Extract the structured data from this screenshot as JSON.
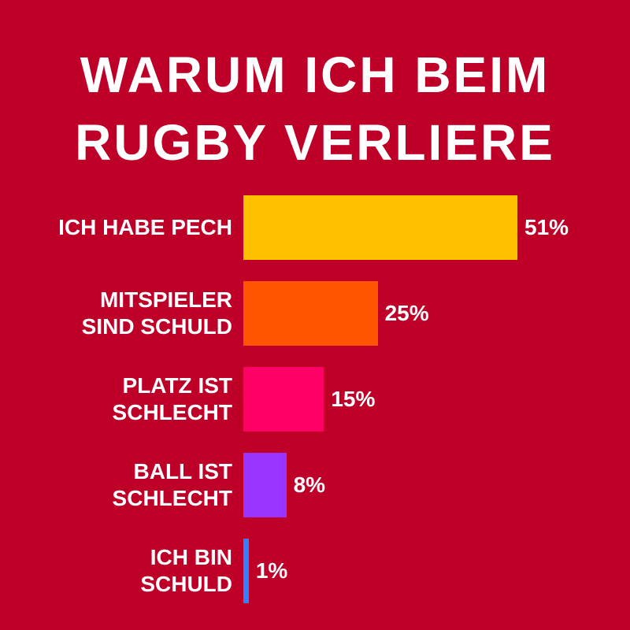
{
  "chart_data": {
    "type": "bar",
    "orientation": "horizontal",
    "title": "WARUM ICH BEIM RUGBY VERLIERE",
    "categories": [
      "ICH HABE PECH",
      "MITSPIELER SIND SCHULD",
      "PLATZ IST SCHLECHT",
      "BALL IST SCHLECHT",
      "ICH BIN SCHULD"
    ],
    "values": [
      51,
      25,
      15,
      8,
      1
    ],
    "value_labels": [
      "51%",
      "25%",
      "15%",
      "8%",
      "1%"
    ],
    "colors": [
      "#ffc000",
      "#ff5500",
      "#ff0066",
      "#9933ff",
      "#3380ff"
    ]
  }
}
